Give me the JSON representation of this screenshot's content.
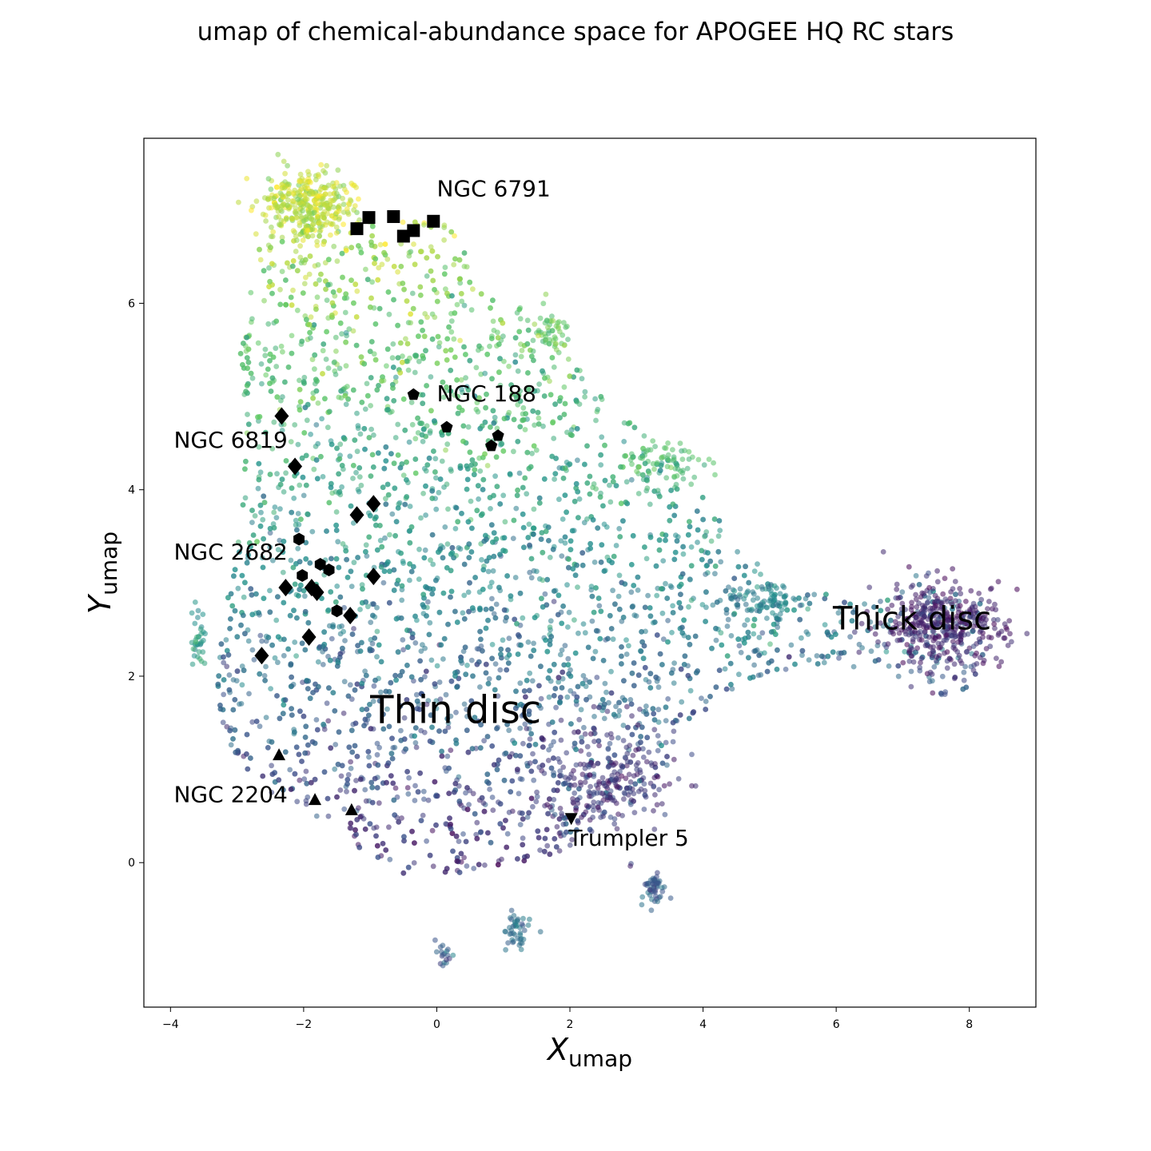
{
  "chart_data": {
    "type": "scatter",
    "title": "umap of chemical-abundance space for APOGEE HQ RC stars",
    "xlabel": {
      "main": "X",
      "sub": "umap"
    },
    "ylabel": {
      "main": "Y",
      "sub": "umap"
    },
    "xlim": [
      -4.4,
      9.0
    ],
    "ylim": [
      -1.55,
      7.77
    ],
    "xticks": [
      -4,
      -2,
      0,
      2,
      4,
      6,
      8
    ],
    "yticks": [
      0,
      2,
      4,
      6
    ],
    "xtick_labels": [
      "−4",
      "−2",
      "0",
      "2",
      "4",
      "6",
      "8"
    ],
    "ytick_labels": [
      "0",
      "2",
      "4",
      "6"
    ],
    "colormap": [
      "#440154",
      "#3b528b",
      "#21918c",
      "#5ec962",
      "#fde725"
    ],
    "region_labels": [
      {
        "text": "Thin disc",
        "x": -1.0,
        "y": 1.5
      },
      {
        "text": "Thick disc",
        "x": 5.95,
        "y": 2.5
      }
    ],
    "clusters": [
      {
        "name": "NGC 6791",
        "marker": "square",
        "label_x": 0.0,
        "label_y": 7.15,
        "points": [
          [
            -1.2,
            6.8
          ],
          [
            -1.02,
            6.92
          ],
          [
            -0.65,
            6.93
          ],
          [
            -0.5,
            6.72
          ],
          [
            -0.35,
            6.78
          ],
          [
            -0.05,
            6.88
          ]
        ]
      },
      {
        "name": "NGC 188",
        "marker": "pentagon",
        "label_x": 0.0,
        "label_y": 4.95,
        "points": [
          [
            -0.35,
            5.02
          ],
          [
            0.15,
            4.67
          ],
          [
            0.82,
            4.47
          ],
          [
            0.92,
            4.58
          ]
        ]
      },
      {
        "name": "NGC 6819",
        "marker": "diamond",
        "label_x": -3.95,
        "label_y": 4.45,
        "points": [
          [
            -2.33,
            4.79
          ],
          [
            -2.13,
            4.25
          ],
          [
            -1.2,
            3.73
          ],
          [
            -0.95,
            3.85
          ],
          [
            -2.27,
            2.95
          ],
          [
            -1.88,
            2.95
          ],
          [
            -1.8,
            2.9
          ],
          [
            -0.95,
            3.07
          ],
          [
            -1.3,
            2.65
          ],
          [
            -1.92,
            2.42
          ],
          [
            -2.63,
            2.22
          ]
        ]
      },
      {
        "name": "NGC 2682",
        "marker": "hexagon",
        "label_x": -3.95,
        "label_y": 3.25,
        "points": [
          [
            -2.07,
            3.47
          ],
          [
            -2.02,
            3.08
          ],
          [
            -1.75,
            3.2
          ],
          [
            -1.62,
            3.14
          ],
          [
            -1.5,
            2.7
          ]
        ]
      },
      {
        "name": "NGC 2204",
        "marker": "triangle-up",
        "label_x": -3.95,
        "label_y": 0.65,
        "points": [
          [
            -2.37,
            1.15
          ],
          [
            -1.83,
            0.67
          ],
          [
            -1.28,
            0.56
          ]
        ]
      },
      {
        "name": "Trumpler 5",
        "marker": "triangle-down",
        "label_x": 1.98,
        "label_y": 0.18,
        "points": [
          [
            2.02,
            0.48
          ]
        ]
      }
    ]
  }
}
